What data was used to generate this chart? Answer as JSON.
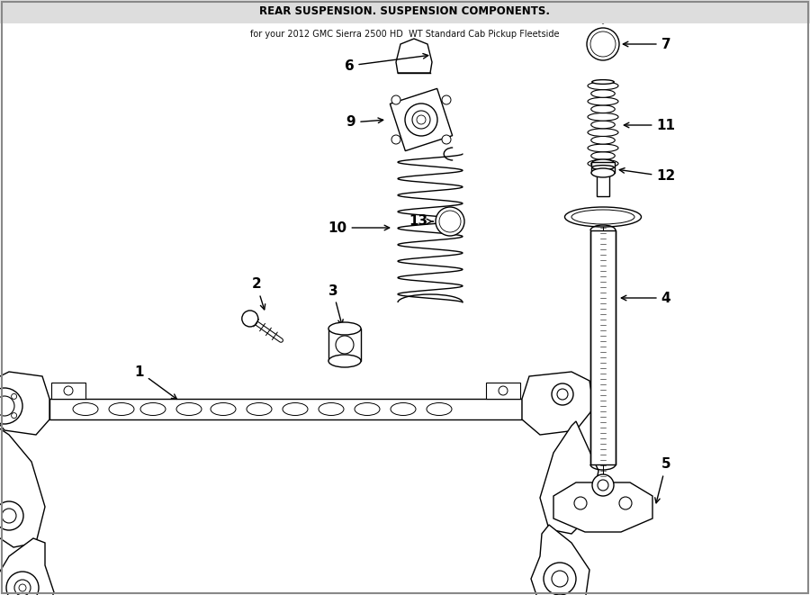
{
  "title": "REAR SUSPENSION. SUSPENSION COMPONENTS.",
  "subtitle": "for your 2012 GMC Sierra 2500 HD  WT Standard Cab Pickup Fleetside",
  "bg_color": "#ffffff",
  "lc": "#000000",
  "lw": 1.0,
  "fig_w": 9.0,
  "fig_h": 6.61,
  "dpi": 100,
  "xlim": [
    0,
    900
  ],
  "ylim": [
    0,
    661
  ]
}
